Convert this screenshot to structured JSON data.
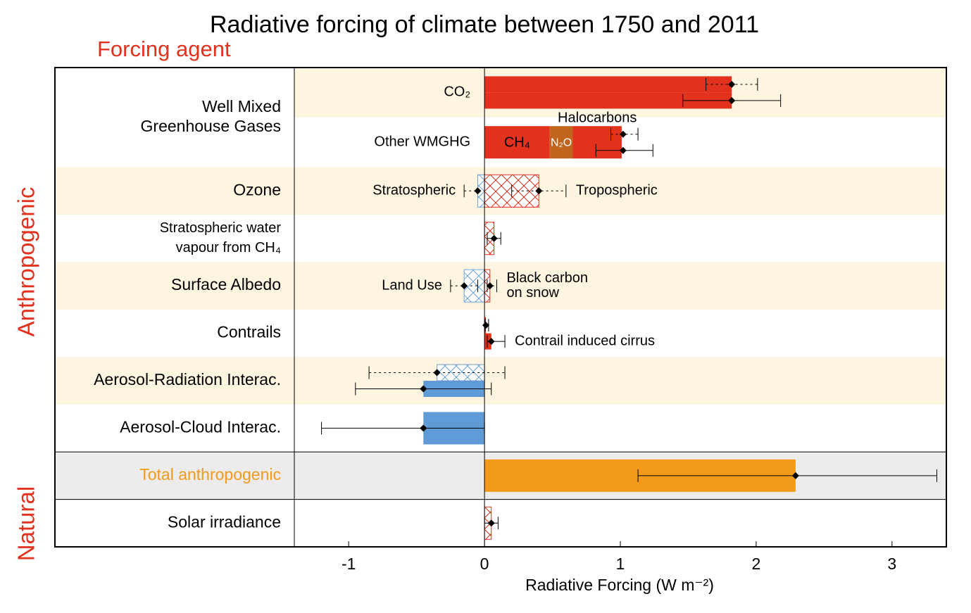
{
  "chart_data": {
    "type": "bar",
    "title": "Radiative forcing of climate between 1750 and 2011",
    "column_title": "Forcing agent",
    "group_labels": [
      "Anthropogenic",
      "Natural"
    ],
    "xlabel": "Radiative Forcing (W m⁻²)",
    "xlim": [
      -1.4,
      3.4
    ],
    "xticks": [
      -1,
      0,
      1,
      2,
      3
    ],
    "rows": [
      {
        "label": [
          "Well Mixed",
          "Greenhouse Gases"
        ],
        "lanes": [
          {
            "label": "CO₂",
            "shade": "#fdf5df",
            "entries": [
              {
                "value": 1.82,
                "range": [
                  1.63,
                  2.01
                ],
                "style": "solid",
                "error": "dashed",
                "color": "#e2311d"
              },
              {
                "value": 1.82,
                "range": [
                  1.46,
                  2.18
                ],
                "style": "solid",
                "error": "solid",
                "color": "#e2311d"
              }
            ]
          },
          {
            "label": "Other WMGHG",
            "stack": [
              {
                "name": "CH₄",
                "value": 0.48,
                "color": "#e2311d",
                "text_color": "#000000"
              },
              {
                "name": "N₂O",
                "value": 0.17,
                "color": "#c1641c",
                "text_color": "#ffffff"
              },
              {
                "name": "Halocarbons",
                "value": 0.36,
                "color": "#e2311d",
                "text_color": "#000000"
              }
            ],
            "entries": [
              {
                "value": 1.02,
                "range": [
                  0.93,
                  1.13
                ],
                "style": "none",
                "error": "dashed"
              },
              {
                "value": 1.02,
                "range": [
                  0.82,
                  1.24
                ],
                "style": "none",
                "error": "solid"
              }
            ]
          }
        ]
      },
      {
        "label": [
          "Ozone"
        ],
        "shade": "#fdf5df",
        "lanes": [
          {
            "entries": [
              {
                "name": "Stratospheric",
                "value": -0.05,
                "range": [
                  -0.15,
                  0.05
                ],
                "style": "hatched",
                "error": "dashed",
                "color": "#6fa3d6"
              },
              {
                "name": "Tropospheric",
                "value": 0.4,
                "range": [
                  0.2,
                  0.6
                ],
                "style": "hatched",
                "error": "dashed",
                "color": "#e2311d"
              }
            ]
          }
        ]
      },
      {
        "label": [
          "Stratospheric water",
          "vapour from CH₄"
        ],
        "lanes": [
          {
            "entries": [
              {
                "value": 0.07,
                "range": [
                  0.02,
                  0.12
                ],
                "style": "hatched",
                "error": "solid",
                "color": "#e2311d"
              }
            ]
          }
        ]
      },
      {
        "label": [
          "Surface Albedo"
        ],
        "shade": "#fdf5df",
        "lanes": [
          {
            "entries": [
              {
                "name": "Land Use",
                "value": -0.15,
                "range": [
                  -0.25,
                  -0.05
                ],
                "style": "hatched",
                "error": "dashed",
                "color": "#6fa3d6"
              },
              {
                "name": [
                  "Black carbon",
                  "on snow"
                ],
                "value": 0.04,
                "range": [
                  0.02,
                  0.09
                ],
                "style": "hatched",
                "error": "dashed",
                "color": "#e2311d"
              }
            ]
          }
        ]
      },
      {
        "label": [
          "Contrails"
        ],
        "lanes": [
          {
            "entries": [
              {
                "value": 0.01,
                "range": [
                  0.005,
                  0.03
                ],
                "style": "solid",
                "error": "dashed",
                "color": "#e2311d"
              },
              {
                "name": "Contrail induced cirrus",
                "value": 0.05,
                "range": [
                  0.02,
                  0.15
                ],
                "style": "solid",
                "error": "solid",
                "color": "#e2311d"
              }
            ]
          }
        ]
      },
      {
        "label": [
          "Aerosol-Radiation Interac."
        ],
        "shade": "#fdf5df",
        "lanes": [
          {
            "entries": [
              {
                "value": -0.35,
                "range": [
                  -0.85,
                  0.15
                ],
                "style": "hatched",
                "error": "dashed",
                "color": "#6fa3d6"
              },
              {
                "value": -0.45,
                "range": [
                  -0.95,
                  0.05
                ],
                "style": "solid",
                "error": "solid",
                "color": "#5f9bd6"
              }
            ]
          }
        ]
      },
      {
        "label": [
          "Aerosol-Cloud Interac."
        ],
        "lanes": [
          {
            "entries": [
              {
                "value": -0.45,
                "range": [
                  -1.2,
                  0.0
                ],
                "style": "solid",
                "error": "solid",
                "color": "#5f9bd6"
              }
            ]
          }
        ]
      },
      {
        "label": [
          "Total anthropogenic"
        ],
        "label_color": "#f39a1b",
        "shade": "#ececec",
        "boxed": true,
        "lanes": [
          {
            "entries": [
              {
                "value": 2.29,
                "range": [
                  1.13,
                  3.33
                ],
                "style": "solid",
                "error": "solid",
                "color": "#f39a1b"
              }
            ]
          }
        ]
      },
      {
        "label": [
          "Solar irradiance"
        ],
        "lanes": [
          {
            "entries": [
              {
                "value": 0.05,
                "range": [
                  0.0,
                  0.1
                ],
                "style": "hatched",
                "error": "solid",
                "color": "#e2311d"
              }
            ]
          }
        ]
      }
    ]
  }
}
